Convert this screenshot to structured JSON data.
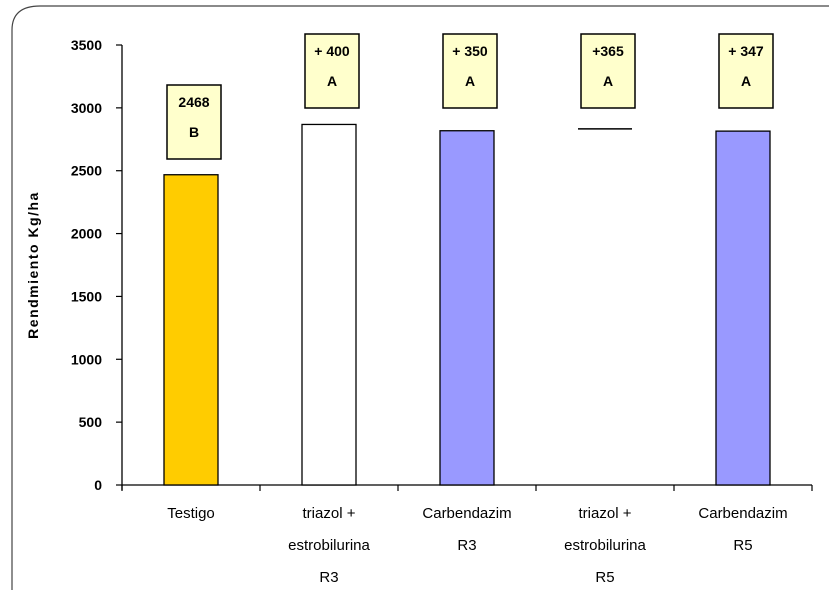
{
  "chart_data": {
    "type": "bar",
    "ylabel": "Rendmiento Kg/ha",
    "ylim": [
      0,
      3500
    ],
    "yticks": [
      "0",
      "500",
      "1000",
      "1500",
      "2000",
      "2500",
      "3000",
      "3500"
    ],
    "categories": [
      [
        "Testigo"
      ],
      [
        "triazol +",
        "estrobilurina",
        "R3"
      ],
      [
        "Carbendazim",
        "R3"
      ],
      [
        "triazol +",
        "estrobilurina",
        "R5"
      ],
      [
        "Carbendazim",
        "R5"
      ]
    ],
    "values": [
      2468,
      2868,
      2818,
      2833,
      2815
    ],
    "bar_colors": [
      "#ffcc00",
      "#ffffff",
      "#9999ff",
      "#ffffff",
      "#9999ff"
    ],
    "bar_outline_only_top": [
      false,
      false,
      false,
      true,
      false
    ],
    "annotations": [
      {
        "value": "2468",
        "group": "B"
      },
      {
        "value": "+ 400",
        "group": "A"
      },
      {
        "value": "+ 350",
        "group": "A"
      },
      {
        "value": "+365",
        "group": "A"
      },
      {
        "value": "+ 347",
        "group": "A"
      }
    ],
    "annotation_box_color": "#ffffcc",
    "grid": false,
    "legend": "none"
  }
}
